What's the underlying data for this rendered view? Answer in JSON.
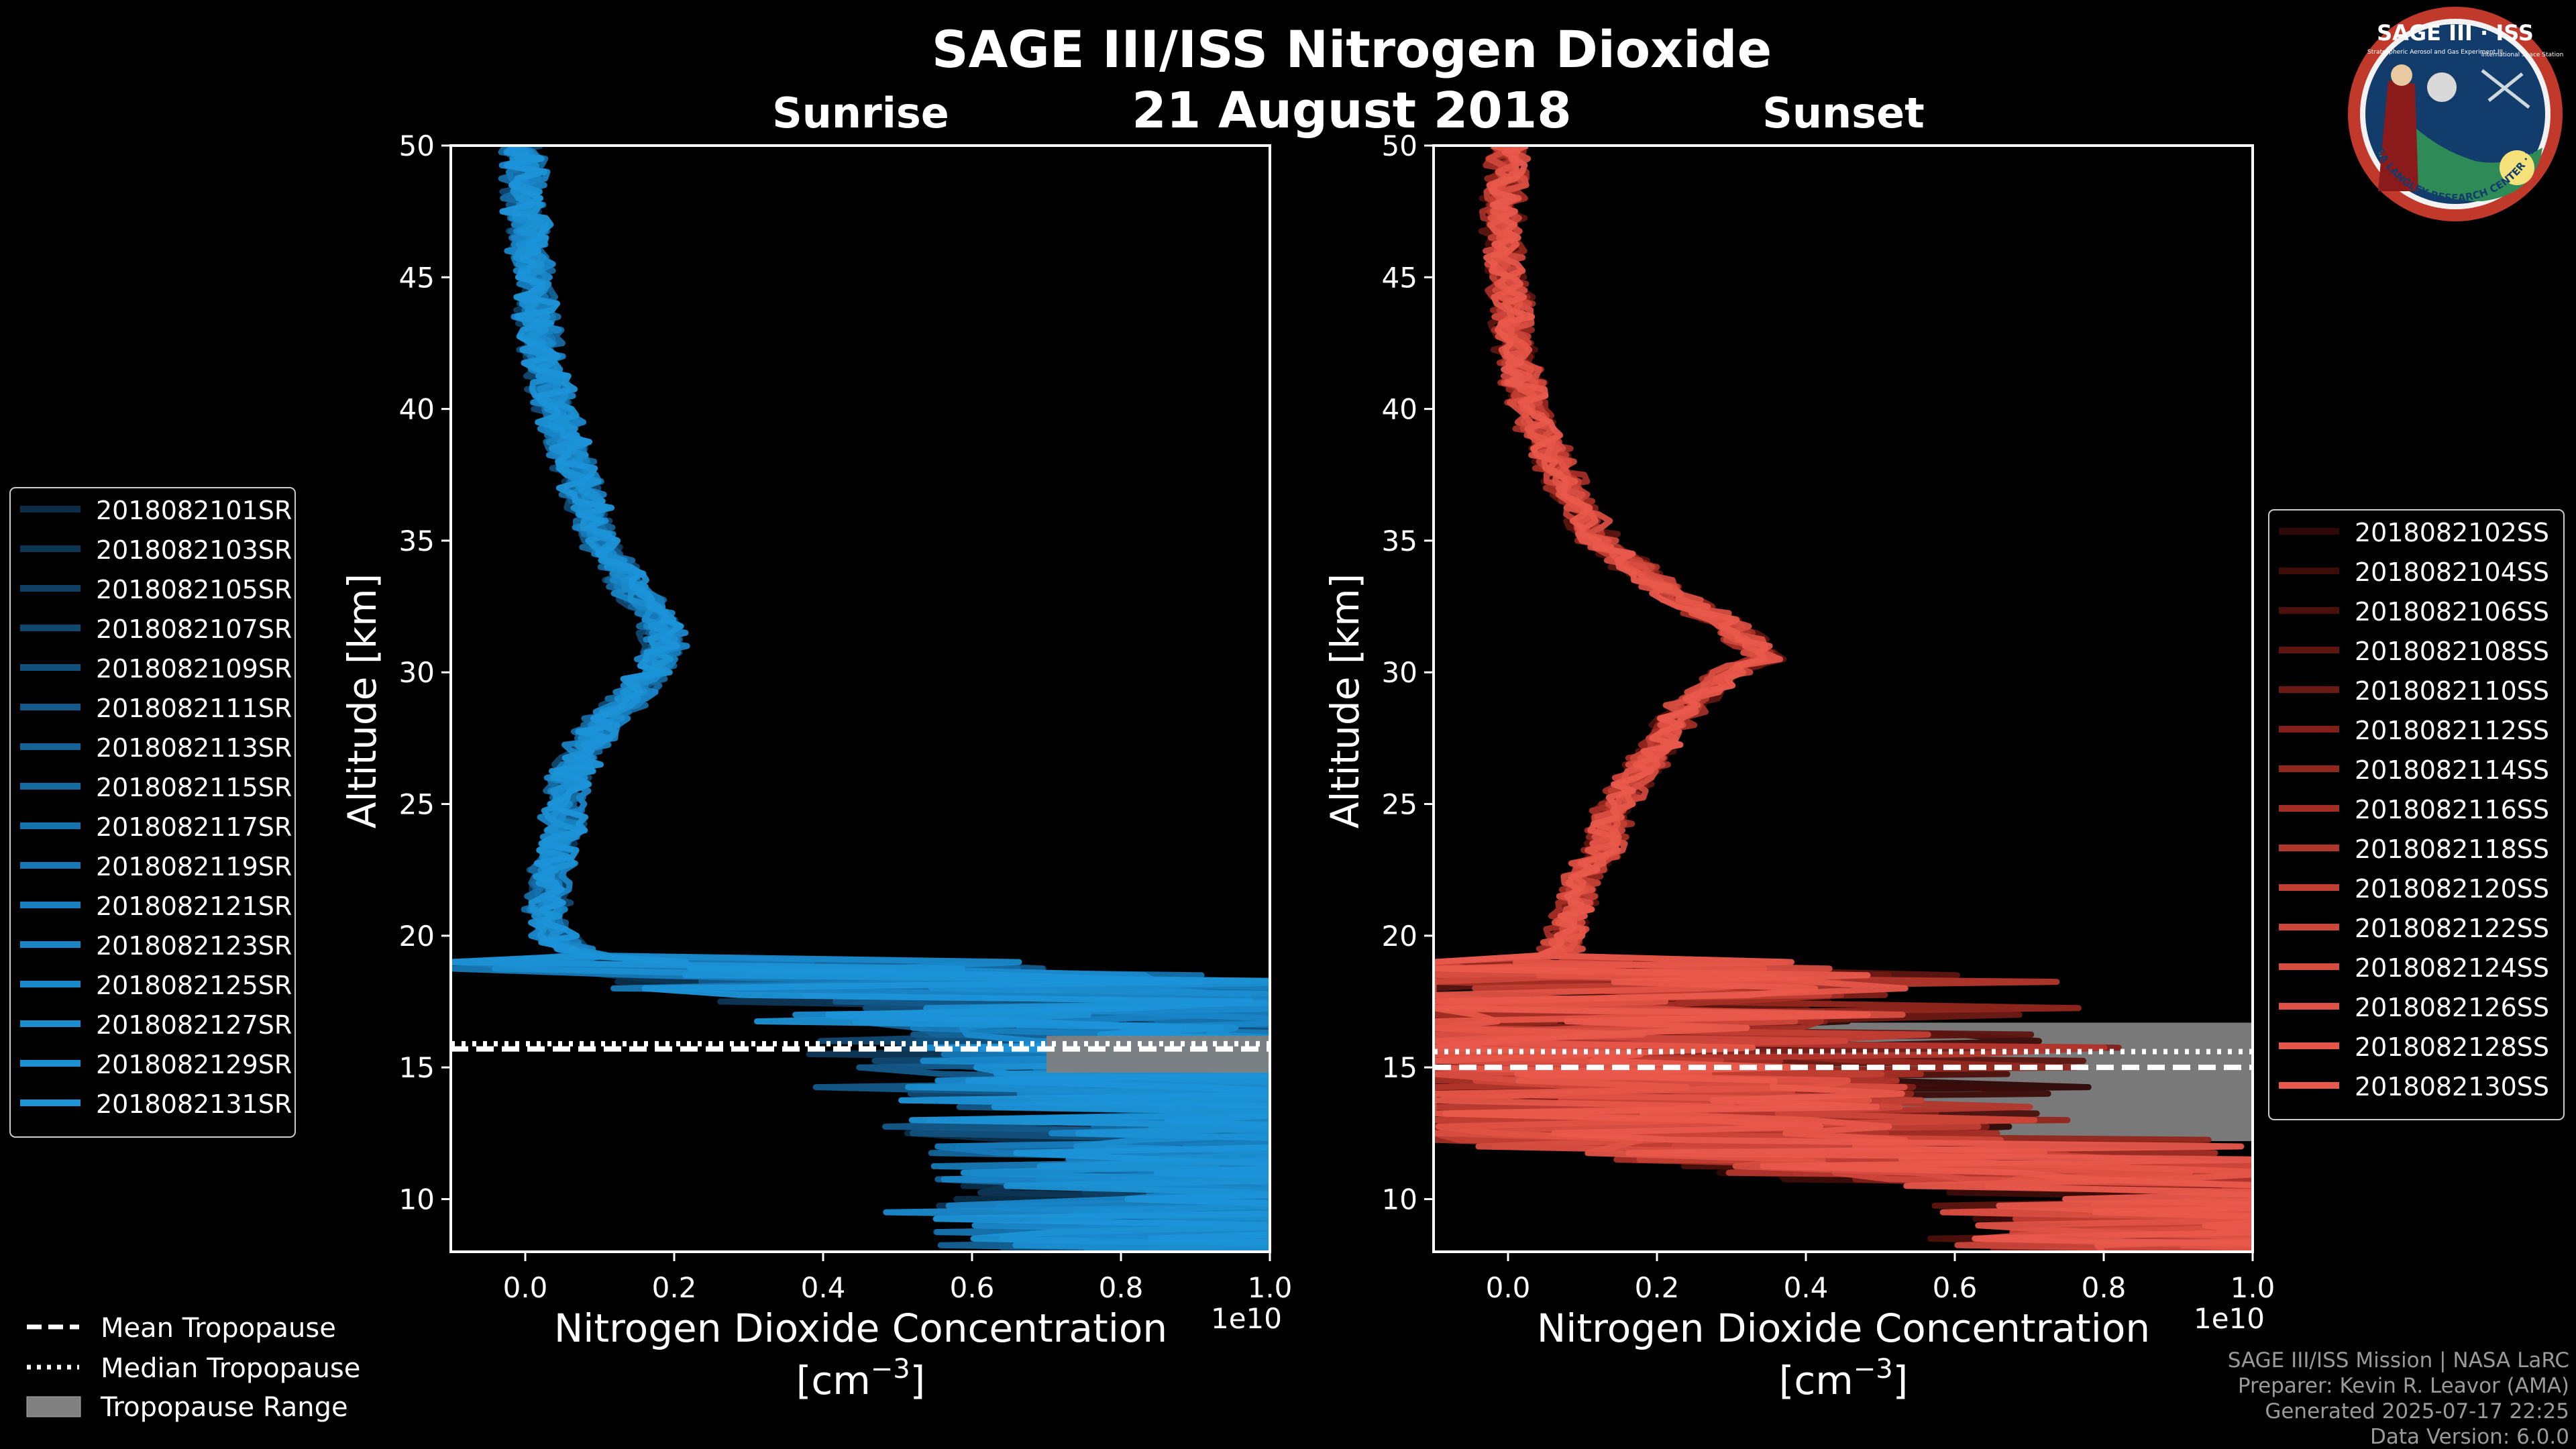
{
  "title": "SAGE III/ISS Nitrogen Dioxide",
  "date": "21 August 2018",
  "logo": {
    "title": "SAGE III · ISS",
    "subtitle": "Stratospheric Aerosol and Gas Experiment III",
    "right_text": "International Space Station",
    "ring_text": "BALL · NASA LANGLEY RESEARCH CENTER · TAS-I · ESA"
  },
  "footer": [
    "SAGE III/ISS Mission | NASA LaRC",
    "Preparer: Kevin R. Leavor (AMA)",
    "Generated 2025-07-17 22:25",
    "Data Version: 6.0.0"
  ],
  "bottom_legend": [
    {
      "label": "Mean Tropopause",
      "style": "dashed"
    },
    {
      "label": "Median Tropopause",
      "style": "dotted"
    },
    {
      "label": "Tropopause Range",
      "style": "patch"
    }
  ],
  "colors": {
    "background": "#000000",
    "sunrise": "#1a8fd0",
    "sunset": "#e8574a",
    "tropopause_range": "#808080",
    "text": "#ffffff"
  },
  "chart_data": [
    {
      "type": "line",
      "title": "Sunrise",
      "xlabel": "Nitrogen Dioxide Concentration",
      "xunit": "[cm",
      "xunit_exp": "−3",
      "xunit_close": "]",
      "offset_label": "1e10",
      "ylabel": "Altitude [km]",
      "xlim": [
        -0.1,
        1.0
      ],
      "ylim": [
        8,
        50
      ],
      "xticks": [
        0.0,
        0.2,
        0.4,
        0.6,
        0.8,
        1.0
      ],
      "xtick_labels": [
        "0.0",
        "0.2",
        "0.4",
        "0.6",
        "0.8",
        "1.0"
      ],
      "yticks": [
        10,
        15,
        20,
        25,
        30,
        35,
        40,
        45,
        50
      ],
      "ytick_labels": [
        "10",
        "15",
        "20",
        "25",
        "30",
        "35",
        "40",
        "45",
        "50"
      ],
      "legend_position": "left",
      "tropopause": {
        "mean": 15.7,
        "median": 15.9,
        "range": [
          14.8,
          16.2
        ]
      },
      "profile": {
        "altitude": [
          50,
          47.5,
          45,
          42.5,
          40,
          37.5,
          35,
          33,
          32,
          31,
          30,
          29,
          28,
          27,
          26,
          25,
          24,
          23,
          22,
          21,
          20,
          19.5,
          19,
          18.5,
          18,
          17,
          16,
          15,
          14,
          13,
          12,
          11,
          10,
          9,
          8.5
        ],
        "concentration": [
          0.0,
          0.0,
          0.01,
          0.02,
          0.04,
          0.07,
          0.1,
          0.15,
          0.18,
          0.19,
          0.17,
          0.14,
          0.1,
          0.08,
          0.06,
          0.05,
          0.05,
          0.04,
          0.03,
          0.03,
          0.04,
          0.06,
          0.12,
          0.4,
          0.6,
          0.8,
          0.9,
          0.9,
          0.9,
          0.95,
          1.0,
          1.0,
          1.0,
          1.0,
          1.0
        ]
      },
      "series": [
        {
          "name": "2018082101SR",
          "color": "#0b2d48"
        },
        {
          "name": "2018082103SR",
          "color": "#0d3655"
        },
        {
          "name": "2018082105SR",
          "color": "#0f3f63"
        },
        {
          "name": "2018082107SR",
          "color": "#114870"
        },
        {
          "name": "2018082109SR",
          "color": "#12517d"
        },
        {
          "name": "2018082111SR",
          "color": "#135a8a"
        },
        {
          "name": "2018082113SR",
          "color": "#146296"
        },
        {
          "name": "2018082115SR",
          "color": "#156aa2"
        },
        {
          "name": "2018082117SR",
          "color": "#1572ad"
        },
        {
          "name": "2018082119SR",
          "color": "#1679b7"
        },
        {
          "name": "2018082121SR",
          "color": "#177fbf"
        },
        {
          "name": "2018082123SR",
          "color": "#1884c6"
        },
        {
          "name": "2018082125SR",
          "color": "#1989cc"
        },
        {
          "name": "2018082127SR",
          "color": "#1a8dd0"
        },
        {
          "name": "2018082129SR",
          "color": "#1b91d4"
        },
        {
          "name": "2018082131SR",
          "color": "#1c94d8"
        }
      ]
    },
    {
      "type": "line",
      "title": "Sunset",
      "xlabel": "Nitrogen Dioxide Concentration",
      "xunit": "[cm",
      "xunit_exp": "−3",
      "xunit_close": "]",
      "offset_label": "1e10",
      "ylabel": "Altitude [km]",
      "xlim": [
        -0.1,
        1.0
      ],
      "ylim": [
        8,
        50
      ],
      "xticks": [
        0.0,
        0.2,
        0.4,
        0.6,
        0.8,
        1.0
      ],
      "xtick_labels": [
        "0.0",
        "0.2",
        "0.4",
        "0.6",
        "0.8",
        "1.0"
      ],
      "yticks": [
        10,
        15,
        20,
        25,
        30,
        35,
        40,
        45,
        50
      ],
      "ytick_labels": [
        "10",
        "15",
        "20",
        "25",
        "30",
        "35",
        "40",
        "45",
        "50"
      ],
      "legend_position": "right",
      "tropopause": {
        "mean": 15.0,
        "median": 15.6,
        "range": [
          12.2,
          16.7
        ]
      },
      "profile": {
        "altitude": [
          50,
          47.5,
          45,
          42.5,
          40,
          37.5,
          35,
          33,
          32,
          31,
          30.5,
          30,
          29,
          28,
          27,
          26,
          25,
          24,
          23,
          22,
          21,
          20,
          19,
          18,
          17,
          16,
          15,
          14,
          13,
          12,
          11.5,
          11,
          10.5,
          10,
          9,
          8.5
        ],
        "concentration": [
          0.0,
          -0.01,
          0.0,
          0.01,
          0.03,
          0.07,
          0.12,
          0.22,
          0.28,
          0.33,
          0.35,
          0.3,
          0.25,
          0.22,
          0.2,
          0.17,
          0.15,
          0.13,
          0.12,
          0.1,
          0.09,
          0.08,
          0.06,
          0.04,
          0.03,
          0.05,
          0.1,
          0.15,
          0.2,
          0.3,
          0.5,
          0.75,
          0.95,
          1.0,
          1.0,
          1.0
        ]
      },
      "series": [
        {
          "name": "2018082102SS",
          "color": "#2e0907"
        },
        {
          "name": "2018082104SS",
          "color": "#3c0c09"
        },
        {
          "name": "2018082106SS",
          "color": "#4c100c"
        },
        {
          "name": "2018082108SS",
          "color": "#5d1510"
        },
        {
          "name": "2018082110SS",
          "color": "#6e1a14"
        },
        {
          "name": "2018082112SS",
          "color": "#802019"
        },
        {
          "name": "2018082114SS",
          "color": "#92271e"
        },
        {
          "name": "2018082116SS",
          "color": "#a32e25"
        },
        {
          "name": "2018082118SS",
          "color": "#b3362c"
        },
        {
          "name": "2018082120SS",
          "color": "#c13e33"
        },
        {
          "name": "2018082122SS",
          "color": "#cd463a"
        },
        {
          "name": "2018082124SS",
          "color": "#d74d40"
        },
        {
          "name": "2018082126SS",
          "color": "#df5245"
        },
        {
          "name": "2018082128SS",
          "color": "#e55649"
        },
        {
          "name": "2018082130SS",
          "color": "#e8594c"
        }
      ]
    }
  ]
}
